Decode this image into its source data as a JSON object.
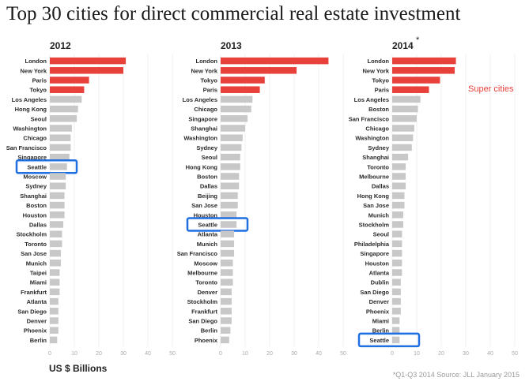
{
  "title": "Top 30 cities for direct commercial real estate investment",
  "units_label": "US $ Billions",
  "source_note": "*Q1-Q3 2014 Source: JLL January 2015",
  "legend": {
    "super_cities_label": "Super cities",
    "super_color": "#e8413c",
    "other_color": "#c8c8c8",
    "highlight_color": "#1f6fe0"
  },
  "highlight_city": "Seattle",
  "chart_data": [
    {
      "type": "bar",
      "title": "2012",
      "xlim": [
        0,
        50
      ],
      "ticks": [
        0,
        10,
        20,
        30,
        40,
        50
      ],
      "categories": [
        "London",
        "New York",
        "Paris",
        "Tokyo",
        "Los Angeles",
        "Hong Kong",
        "Seoul",
        "Washington",
        "Chicago",
        "San Francisco",
        "Singapore",
        "Seattle",
        "Moscow",
        "Sydney",
        "Shanghai",
        "Boston",
        "Houston",
        "Dallas",
        "Stockholm",
        "Toronto",
        "San Jose",
        "Munich",
        "Taipei",
        "Miami",
        "Frankfurt",
        "Atlanta",
        "San Diego",
        "Denver",
        "Phoenix",
        "Berlin"
      ],
      "values": [
        31,
        30,
        16,
        14,
        13,
        11.5,
        11,
        9,
        8.5,
        8.5,
        8,
        7,
        6.5,
        6.5,
        6,
        6,
        6,
        5.5,
        5,
        5,
        4.5,
        4.5,
        4,
        4,
        4,
        3.5,
        3.5,
        3.5,
        3.5,
        3
      ],
      "super_cities": [
        "London",
        "New York",
        "Paris",
        "Tokyo"
      ]
    },
    {
      "type": "bar",
      "title": "2013",
      "xlim": [
        0,
        50
      ],
      "ticks": [
        0,
        10,
        20,
        30,
        40,
        50
      ],
      "categories": [
        "London",
        "New York",
        "Tokyo",
        "Paris",
        "Los Angeles",
        "Chicago",
        "Singapore",
        "Shanghai",
        "Washington",
        "Sydney",
        "Seoul",
        "Hong Kong",
        "Boston",
        "Dallas",
        "Beijing",
        "San Jose",
        "Houston",
        "Seattle",
        "Atlanta",
        "Munich",
        "San Francisco",
        "Moscow",
        "Melbourne",
        "Toronto",
        "Denver",
        "Stockholm",
        "Frankfurt",
        "San Diego",
        "Berlin",
        "Phoenix"
      ],
      "values": [
        44,
        31,
        18,
        16,
        13,
        12.5,
        11,
        10,
        9,
        8.5,
        8,
        8,
        7.5,
        7.5,
        7,
        7,
        6.5,
        6.5,
        5.5,
        5.5,
        5.5,
        5,
        5,
        5,
        4.5,
        4.5,
        4.5,
        4.5,
        4,
        3.5
      ],
      "super_cities": [
        "London",
        "New York",
        "Tokyo",
        "Paris"
      ]
    },
    {
      "type": "bar",
      "title": "2014",
      "title_suffix": "*",
      "xlim": [
        0,
        50
      ],
      "ticks": [
        0,
        10,
        20,
        30,
        40,
        50
      ],
      "categories": [
        "London",
        "New York",
        "Tokyo",
        "Paris",
        "Los Angeles",
        "Boston",
        "San Francisco",
        "Chicago",
        "Washington",
        "Sydney",
        "Shanghai",
        "Toronto",
        "Melbourne",
        "Dallas",
        "Hong Kong",
        "San Jose",
        "Munich",
        "Stockholm",
        "Seoul",
        "Philadelphia",
        "Singapore",
        "Houston",
        "Atlanta",
        "Dublin",
        "San Diego",
        "Denver",
        "Phoenix",
        "Miami",
        "Berlin",
        "Seattle"
      ],
      "values": [
        26,
        25.5,
        19.5,
        15,
        11.5,
        10.5,
        10,
        9,
        8.5,
        8,
        6.5,
        5.5,
        5.5,
        5.5,
        5,
        5,
        4.5,
        4.5,
        4,
        4,
        4,
        4,
        4,
        3.5,
        3.5,
        3.5,
        3.5,
        3,
        3,
        3
      ],
      "super_cities": [
        "London",
        "New York",
        "Tokyo",
        "Paris"
      ]
    }
  ]
}
